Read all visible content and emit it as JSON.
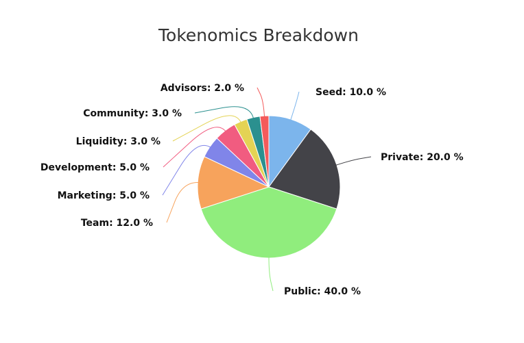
{
  "chart_data": {
    "type": "pie",
    "title": "Tokenomics Breakdown",
    "value_suffix": " %",
    "slices": [
      {
        "name": "Seed",
        "value": 10.0,
        "color": "#7cb5ec"
      },
      {
        "name": "Private",
        "value": 20.0,
        "color": "#434348"
      },
      {
        "name": "Public",
        "value": 40.0,
        "color": "#90ed7d"
      },
      {
        "name": "Team",
        "value": 12.0,
        "color": "#f7a35c"
      },
      {
        "name": "Marketing",
        "value": 5.0,
        "color": "#8085e9"
      },
      {
        "name": "Development",
        "value": 5.0,
        "color": "#f15c80"
      },
      {
        "name": "Liquidity",
        "value": 3.0,
        "color": "#e4d354"
      },
      {
        "name": "Community",
        "value": 3.0,
        "color": "#2b908f"
      },
      {
        "name": "Advisors",
        "value": 2.0,
        "color": "#f45b5b"
      }
    ]
  }
}
